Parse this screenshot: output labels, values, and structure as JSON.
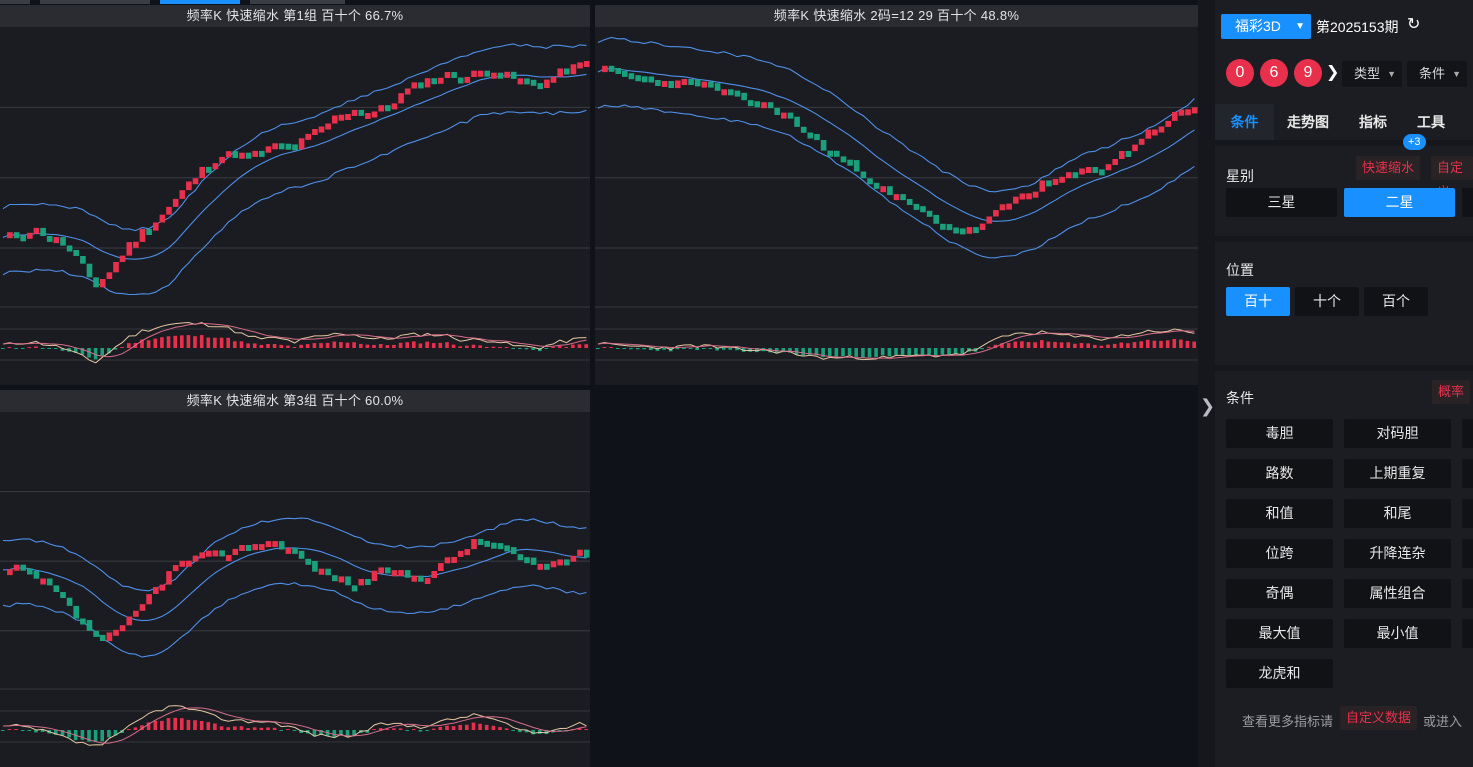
{
  "charts": [
    {
      "id": "c1",
      "title": "频率K  快速缩水  第1组  百十个  66.7%",
      "seed": 11,
      "shape": [
        0.46,
        0.48,
        0.49,
        0.47,
        0.44,
        0.38,
        0.31,
        0.36,
        0.43,
        0.48,
        0.52,
        0.57,
        0.63,
        0.68,
        0.72,
        0.73,
        0.72,
        0.74,
        0.76,
        0.75,
        0.79,
        0.82,
        0.86,
        0.87,
        0.86,
        0.88,
        0.92,
        0.95,
        0.97,
        0.98,
        0.97,
        0.99,
        1.0,
        0.97,
        0.96,
        0.95,
        0.98,
        1.0,
        1.02
      ]
    },
    {
      "id": "c2",
      "title": "频率K  快速缩水  2码=12 29  百十个  48.8%",
      "seed": 23,
      "shape": [
        1.0,
        0.99,
        0.98,
        0.97,
        0.96,
        0.95,
        0.96,
        0.95,
        0.93,
        0.91,
        0.9,
        0.88,
        0.86,
        0.82,
        0.78,
        0.74,
        0.71,
        0.68,
        0.64,
        0.6,
        0.58,
        0.55,
        0.52,
        0.5,
        0.48,
        0.5,
        0.54,
        0.58,
        0.61,
        0.63,
        0.65,
        0.66,
        0.68,
        0.69,
        0.72,
        0.76,
        0.8,
        0.83,
        0.86,
        0.88
      ]
    },
    {
      "id": "c3",
      "title": "频率K  快速缩水  第3组  百十个  60.0%",
      "seed": 37,
      "shape": [
        0.62,
        0.63,
        0.6,
        0.56,
        0.5,
        0.44,
        0.4,
        0.43,
        0.49,
        0.56,
        0.62,
        0.66,
        0.67,
        0.68,
        0.69,
        0.71,
        0.72,
        0.7,
        0.66,
        0.62,
        0.6,
        0.58,
        0.6,
        0.63,
        0.61,
        0.6,
        0.63,
        0.67,
        0.71,
        0.72,
        0.7,
        0.66,
        0.64,
        0.65,
        0.67,
        0.68
      ]
    }
  ],
  "panel": {
    "lottery": "福彩3D",
    "issue": "第2025153期",
    "balls": [
      "0",
      "6",
      "9"
    ],
    "type_dd": "类型",
    "cond_dd": "条件",
    "tabs": [
      "条件",
      "走势图",
      "指标",
      "工具"
    ],
    "star_title": "星别",
    "star_link": "快速缩水",
    "star_badge": "+3",
    "star_link2": "自定义",
    "stars": [
      "三星",
      "二星"
    ],
    "pos_title": "位置",
    "positions": [
      "百十",
      "十个",
      "百个"
    ],
    "cond_title": "条件",
    "cond_link": "概率",
    "conditions": [
      "毒胆",
      "对码胆",
      "路数",
      "上期重复",
      "和值",
      "和尾",
      "位跨",
      "升降连杂",
      "奇偶",
      "属性组合",
      "最大值",
      "最小值",
      "龙虎和"
    ],
    "foot_prefix": "查看更多指标请",
    "foot_link": "自定义数据",
    "foot_suffix": "或进入"
  },
  "colors": {
    "up": "#e8304d",
    "down": "#1aa07c",
    "band": "#4d8fe8",
    "ma1": "#e6c7a0",
    "ma2": "#d66d8a",
    "accent": "#1890ff"
  }
}
